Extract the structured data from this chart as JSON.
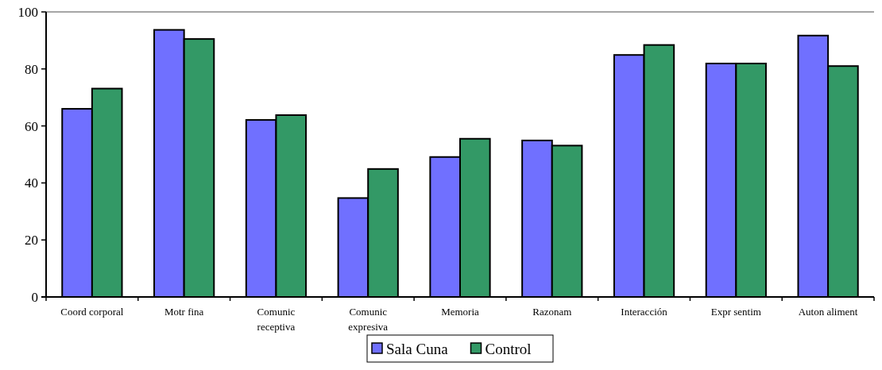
{
  "chart_data": {
    "type": "bar",
    "categories": [
      "Coord corporal",
      "Motr fina",
      "Comunic receptiva",
      "Comunic expresiva",
      "Memoria",
      "Razonam",
      "Interacción",
      "Expr sentim",
      "Auton aliment"
    ],
    "series": [
      {
        "name": "Sala Cuna",
        "color": "#7070ff",
        "values": [
          66,
          93.7,
          62.1,
          34.7,
          49.1,
          54.9,
          84.9,
          81.9,
          91.7
        ]
      },
      {
        "name": "Control",
        "color": "#339966",
        "values": [
          73.1,
          90.5,
          63.8,
          44.9,
          55.5,
          53.1,
          88.4,
          81.9,
          81
        ]
      }
    ],
    "ylim": [
      0,
      100
    ],
    "yticks": [
      0,
      20,
      40,
      60,
      80,
      100
    ],
    "grid": false,
    "legend": "bottom"
  }
}
